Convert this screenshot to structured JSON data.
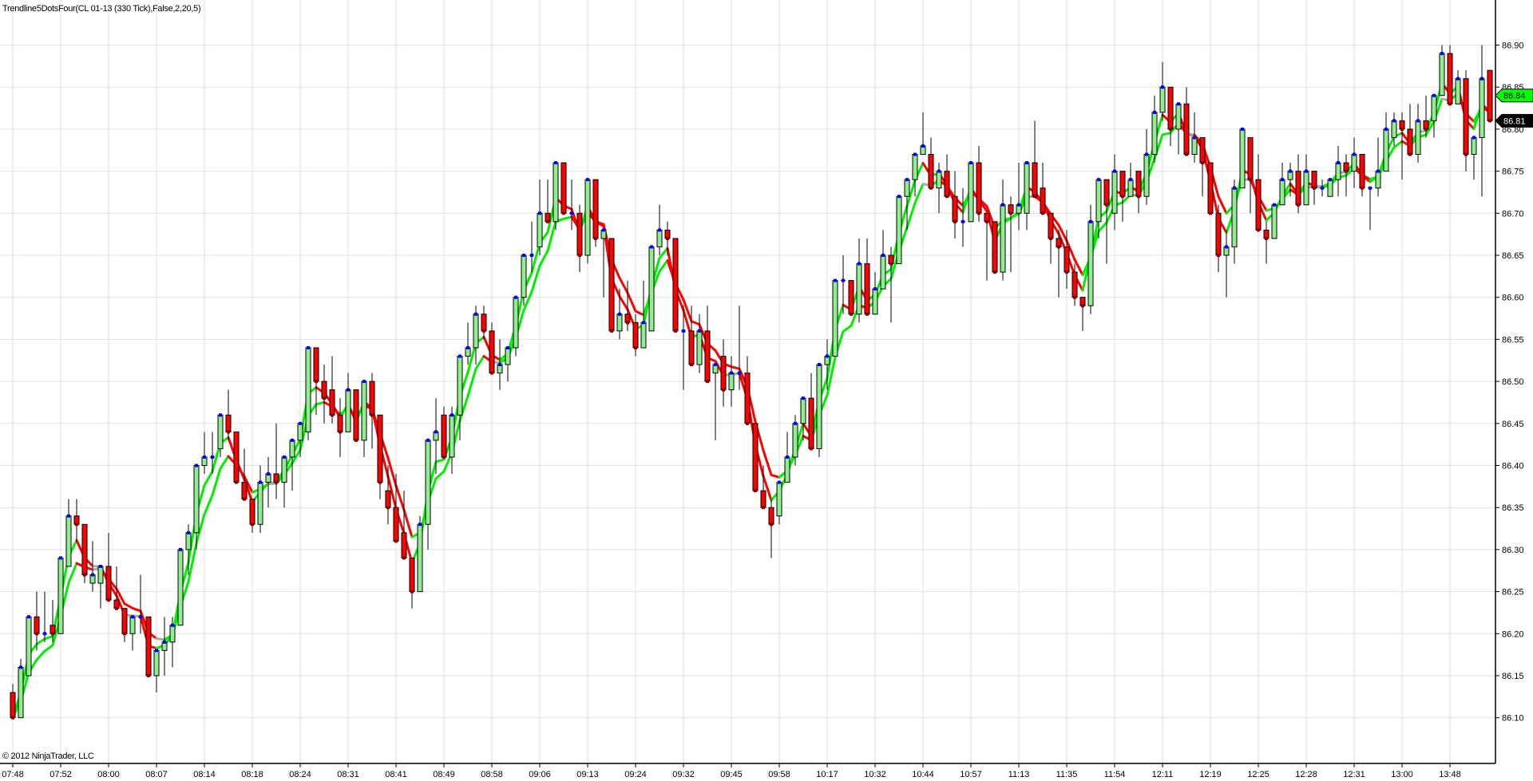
{
  "chart_data": {
    "type": "candlestick",
    "title": "Trendline5DotsFour(CL 01-13 (330 Tick),False,2,20,5)",
    "copyright": "© 2012 NinjaTrader, LLC",
    "ylim": [
      86.1,
      86.9
    ],
    "y_ticks": [
      "86.10",
      "86.15",
      "86.20",
      "86.25",
      "86.30",
      "86.35",
      "86.40",
      "86.45",
      "86.50",
      "86.55",
      "86.60",
      "86.65",
      "86.70",
      "86.75",
      "86.80",
      "86.85",
      "86.90"
    ],
    "x_ticks": [
      "07:48",
      "07:52",
      "08:00",
      "08:07",
      "08:14",
      "08:18",
      "08:24",
      "08:31",
      "08:41",
      "08:49",
      "08:58",
      "09:06",
      "09:13",
      "09:24",
      "09:32",
      "09:45",
      "09:58",
      "10:17",
      "10:32",
      "10:44",
      "10:57",
      "11:13",
      "11:35",
      "11:54",
      "12:11",
      "12:19",
      "12:25",
      "12:28",
      "12:31",
      "13:00",
      "13:48"
    ],
    "grid": true,
    "price_markers": [
      {
        "label": "86.84",
        "value": 86.84,
        "color": "#00ff00"
      },
      {
        "label": "86.81",
        "value": 86.81,
        "color": "#000000"
      }
    ],
    "colors": {
      "up_body": "#90ee90",
      "down_body": "#ff0000",
      "up_dot": "#0000ff",
      "down_dot": "#8b0000",
      "line_up": "#00ee00",
      "line_down": "#ff0000",
      "line_flat": "#aaaaaa",
      "grid": "#e2e2e2"
    },
    "ohlc_fields": [
      "open",
      "high",
      "low",
      "close"
    ],
    "bars": [
      [
        86.13,
        86.14,
        86.1,
        86.1
      ],
      [
        86.1,
        86.17,
        86.1,
        86.16
      ],
      [
        86.15,
        86.22,
        86.15,
        86.22
      ],
      [
        86.22,
        86.25,
        86.18,
        86.2
      ],
      [
        86.2,
        86.25,
        86.19,
        86.2
      ],
      [
        86.21,
        86.24,
        86.19,
        86.2
      ],
      [
        86.2,
        86.29,
        86.2,
        86.29
      ],
      [
        86.28,
        86.36,
        86.28,
        86.34
      ],
      [
        86.34,
        86.36,
        86.31,
        86.33
      ],
      [
        86.33,
        86.33,
        86.26,
        86.27
      ],
      [
        86.26,
        86.31,
        86.25,
        86.27
      ],
      [
        86.26,
        86.28,
        86.23,
        86.28
      ],
      [
        86.28,
        86.32,
        86.24,
        86.24
      ],
      [
        86.24,
        86.28,
        86.23,
        86.23
      ],
      [
        86.23,
        86.23,
        86.19,
        86.2
      ],
      [
        86.2,
        86.22,
        86.18,
        86.22
      ],
      [
        86.22,
        86.27,
        86.2,
        86.22
      ],
      [
        86.22,
        86.22,
        86.15,
        86.15
      ],
      [
        86.15,
        86.18,
        86.13,
        86.18
      ],
      [
        86.18,
        86.22,
        86.15,
        86.19
      ],
      [
        86.19,
        86.22,
        86.16,
        86.21
      ],
      [
        86.21,
        86.3,
        86.21,
        86.3
      ],
      [
        86.3,
        86.33,
        86.27,
        86.32
      ],
      [
        86.32,
        86.4,
        86.3,
        86.4
      ],
      [
        86.4,
        86.44,
        86.39,
        86.41
      ],
      [
        86.41,
        86.44,
        86.39,
        86.41
      ],
      [
        86.42,
        86.46,
        86.41,
        86.46
      ],
      [
        86.46,
        86.49,
        86.43,
        86.44
      ],
      [
        86.44,
        86.44,
        86.38,
        86.38
      ],
      [
        86.38,
        86.42,
        86.36,
        86.36
      ],
      [
        86.36,
        86.36,
        86.32,
        86.33
      ],
      [
        86.33,
        86.4,
        86.32,
        86.38
      ],
      [
        86.38,
        86.41,
        86.35,
        86.39
      ],
      [
        86.39,
        86.45,
        86.36,
        86.38
      ],
      [
        86.38,
        86.41,
        86.35,
        86.41
      ],
      [
        86.41,
        86.43,
        86.37,
        86.43
      ],
      [
        86.43,
        86.45,
        86.41,
        86.45
      ],
      [
        86.44,
        86.54,
        86.43,
        86.54
      ],
      [
        86.54,
        86.54,
        86.46,
        86.5
      ],
      [
        86.5,
        86.52,
        86.45,
        86.48
      ],
      [
        86.49,
        86.53,
        86.45,
        86.46
      ],
      [
        86.46,
        86.48,
        86.41,
        86.44
      ],
      [
        86.44,
        86.51,
        86.44,
        86.49
      ],
      [
        86.49,
        86.49,
        86.43,
        86.43
      ],
      [
        86.43,
        86.5,
        86.41,
        86.5
      ],
      [
        86.5,
        86.51,
        86.42,
        86.46
      ],
      [
        86.46,
        86.46,
        86.36,
        86.38
      ],
      [
        86.37,
        86.4,
        86.33,
        86.35
      ],
      [
        86.35,
        86.39,
        86.31,
        86.31
      ],
      [
        86.32,
        86.37,
        86.29,
        86.29
      ],
      [
        86.29,
        86.29,
        86.23,
        86.25
      ],
      [
        86.25,
        86.34,
        86.25,
        86.33
      ],
      [
        86.33,
        86.43,
        86.3,
        86.43
      ],
      [
        86.43,
        86.48,
        86.39,
        86.44
      ],
      [
        86.46,
        86.47,
        86.41,
        86.41
      ],
      [
        86.41,
        86.47,
        86.39,
        86.46
      ],
      [
        86.46,
        86.53,
        86.43,
        86.53
      ],
      [
        86.53,
        86.57,
        86.52,
        86.54
      ],
      [
        86.54,
        86.59,
        86.52,
        86.58
      ],
      [
        86.58,
        86.59,
        86.55,
        86.56
      ],
      [
        86.56,
        86.57,
        86.51,
        86.51
      ],
      [
        86.51,
        86.55,
        86.49,
        86.52
      ],
      [
        86.52,
        86.54,
        86.5,
        86.54
      ],
      [
        86.54,
        86.6,
        86.53,
        86.6
      ],
      [
        86.6,
        86.65,
        86.59,
        86.65
      ],
      [
        86.65,
        86.69,
        86.63,
        86.65
      ],
      [
        86.66,
        86.74,
        86.65,
        86.7
      ],
      [
        86.7,
        86.74,
        86.69,
        86.69
      ],
      [
        86.69,
        86.76,
        86.68,
        86.76
      ],
      [
        86.76,
        86.76,
        86.7,
        86.7
      ],
      [
        86.7,
        86.74,
        86.68,
        86.7
      ],
      [
        86.7,
        86.71,
        86.63,
        86.65
      ],
      [
        86.65,
        86.74,
        86.64,
        86.74
      ],
      [
        86.74,
        86.74,
        86.66,
        86.67
      ],
      [
        86.67,
        86.68,
        86.6,
        86.68
      ],
      [
        86.67,
        86.67,
        86.56,
        86.56
      ],
      [
        86.56,
        86.61,
        86.55,
        86.58
      ],
      [
        86.58,
        86.62,
        86.56,
        86.57
      ],
      [
        86.57,
        86.58,
        86.53,
        86.54
      ],
      [
        86.54,
        86.62,
        86.54,
        86.57
      ],
      [
        86.56,
        86.66,
        86.56,
        86.66
      ],
      [
        86.66,
        86.71,
        86.65,
        86.68
      ],
      [
        86.68,
        86.69,
        86.65,
        86.67
      ],
      [
        86.67,
        86.67,
        86.56,
        86.56
      ],
      [
        86.56,
        86.59,
        86.49,
        86.56
      ],
      [
        86.56,
        86.59,
        86.52,
        86.52
      ],
      [
        86.52,
        86.58,
        86.51,
        86.56
      ],
      [
        86.56,
        86.59,
        86.5,
        86.5
      ],
      [
        86.51,
        86.52,
        86.43,
        86.52
      ],
      [
        86.53,
        86.55,
        86.47,
        86.49
      ],
      [
        86.49,
        86.53,
        86.47,
        86.51
      ],
      [
        86.51,
        86.59,
        86.49,
        86.51
      ],
      [
        86.51,
        86.53,
        86.45,
        86.45
      ],
      [
        86.45,
        86.45,
        86.37,
        86.37
      ],
      [
        86.37,
        86.4,
        86.35,
        86.35
      ],
      [
        86.35,
        86.36,
        86.29,
        86.33
      ],
      [
        86.34,
        86.38,
        86.33,
        86.38
      ],
      [
        86.38,
        86.44,
        86.38,
        86.41
      ],
      [
        86.41,
        86.46,
        86.4,
        86.45
      ],
      [
        86.45,
        86.48,
        86.43,
        86.48
      ],
      [
        86.48,
        86.51,
        86.42,
        86.42
      ],
      [
        86.42,
        86.52,
        86.41,
        86.52
      ],
      [
        86.52,
        86.55,
        86.49,
        86.53
      ],
      [
        86.53,
        86.62,
        86.53,
        86.62
      ],
      [
        86.62,
        86.65,
        86.58,
        86.62
      ],
      [
        86.62,
        86.62,
        86.58,
        86.58
      ],
      [
        86.58,
        86.67,
        86.57,
        86.64
      ],
      [
        86.64,
        86.67,
        86.58,
        86.58
      ],
      [
        86.58,
        86.63,
        86.58,
        86.61
      ],
      [
        86.61,
        86.68,
        86.61,
        86.65
      ],
      [
        86.65,
        86.66,
        86.57,
        86.64
      ],
      [
        86.64,
        86.72,
        86.64,
        86.72
      ],
      [
        86.72,
        86.74,
        86.68,
        86.74
      ],
      [
        86.74,
        86.77,
        86.72,
        86.77
      ],
      [
        86.77,
        86.82,
        86.77,
        86.78
      ],
      [
        86.77,
        86.79,
        86.73,
        86.73
      ],
      [
        86.73,
        86.76,
        86.7,
        86.75
      ],
      [
        86.75,
        86.77,
        86.72,
        86.72
      ],
      [
        86.72,
        86.75,
        86.67,
        86.69
      ],
      [
        86.69,
        86.73,
        86.66,
        86.69
      ],
      [
        86.69,
        86.76,
        86.69,
        86.76
      ],
      [
        86.76,
        86.78,
        86.69,
        86.7
      ],
      [
        86.7,
        86.7,
        86.62,
        86.69
      ],
      [
        86.69,
        86.69,
        86.63,
        86.63
      ],
      [
        86.63,
        86.74,
        86.62,
        86.71
      ],
      [
        86.71,
        86.72,
        86.63,
        86.7
      ],
      [
        86.7,
        86.76,
        86.68,
        86.71
      ],
      [
        86.7,
        86.76,
        86.68,
        86.76
      ],
      [
        86.76,
        86.81,
        86.72,
        86.72
      ],
      [
        86.73,
        86.76,
        86.7,
        86.7
      ],
      [
        86.7,
        86.7,
        86.64,
        86.67
      ],
      [
        86.67,
        86.68,
        86.6,
        86.66
      ],
      [
        86.66,
        86.68,
        86.61,
        86.63
      ],
      [
        86.63,
        86.64,
        86.59,
        86.6
      ],
      [
        86.6,
        86.6,
        86.56,
        86.59
      ],
      [
        86.59,
        86.71,
        86.58,
        86.69
      ],
      [
        86.69,
        86.74,
        86.67,
        86.74
      ],
      [
        86.74,
        86.74,
        86.64,
        86.71
      ],
      [
        86.7,
        86.77,
        86.68,
        86.75
      ],
      [
        86.75,
        86.75,
        86.69,
        86.72
      ],
      [
        86.72,
        86.76,
        86.72,
        86.74
      ],
      [
        86.75,
        86.75,
        86.7,
        86.72
      ],
      [
        86.72,
        86.8,
        86.71,
        86.77
      ],
      [
        86.77,
        86.84,
        86.76,
        86.82
      ],
      [
        86.82,
        86.88,
        86.81,
        86.85
      ],
      [
        86.85,
        86.85,
        86.78,
        86.8
      ],
      [
        86.8,
        86.83,
        86.77,
        86.83
      ],
      [
        86.83,
        86.85,
        86.77,
        86.77
      ],
      [
        86.77,
        86.82,
        86.76,
        86.79
      ],
      [
        86.79,
        86.79,
        86.72,
        86.76
      ],
      [
        86.76,
        86.76,
        86.7,
        86.7
      ],
      [
        86.7,
        86.71,
        86.63,
        86.65
      ],
      [
        86.65,
        86.68,
        86.6,
        86.66
      ],
      [
        86.66,
        86.74,
        86.64,
        86.73
      ],
      [
        86.73,
        86.8,
        86.73,
        86.8
      ],
      [
        86.79,
        86.79,
        86.7,
        86.74
      ],
      [
        86.74,
        86.77,
        86.68,
        86.68
      ],
      [
        86.68,
        86.69,
        86.64,
        86.67
      ],
      [
        86.67,
        86.71,
        86.67,
        86.71
      ],
      [
        86.71,
        86.76,
        86.71,
        86.74
      ],
      [
        86.74,
        86.76,
        86.72,
        86.75
      ],
      [
        86.75,
        86.77,
        86.7,
        86.71
      ],
      [
        86.71,
        86.77,
        86.71,
        86.75
      ],
      [
        86.75,
        86.75,
        86.71,
        86.73
      ],
      [
        86.73,
        86.74,
        86.72,
        86.73
      ],
      [
        86.72,
        86.74,
        86.72,
        86.74
      ],
      [
        86.74,
        86.78,
        86.72,
        86.76
      ],
      [
        86.76,
        86.77,
        86.72,
        86.75
      ],
      [
        86.75,
        86.79,
        86.73,
        86.77
      ],
      [
        86.77,
        86.77,
        86.72,
        86.73
      ],
      [
        86.73,
        86.73,
        86.68,
        86.73
      ],
      [
        86.73,
        86.79,
        86.72,
        86.75
      ],
      [
        86.75,
        86.82,
        86.75,
        86.8
      ],
      [
        86.79,
        86.82,
        86.78,
        86.81
      ],
      [
        86.81,
        86.82,
        86.74,
        86.8
      ],
      [
        86.8,
        86.83,
        86.77,
        86.77
      ],
      [
        86.77,
        86.83,
        86.76,
        86.81
      ],
      [
        86.81,
        86.84,
        86.79,
        86.8
      ],
      [
        86.81,
        86.84,
        86.79,
        86.84
      ],
      [
        86.84,
        86.9,
        86.84,
        86.89
      ],
      [
        86.89,
        86.9,
        86.83,
        86.83
      ],
      [
        86.83,
        86.87,
        86.83,
        86.86
      ],
      [
        86.86,
        86.87,
        86.75,
        86.77
      ],
      [
        86.77,
        86.79,
        86.74,
        86.79
      ],
      [
        86.79,
        86.9,
        86.72,
        86.86
      ],
      [
        86.87,
        86.87,
        86.81,
        86.81
      ]
    ]
  }
}
